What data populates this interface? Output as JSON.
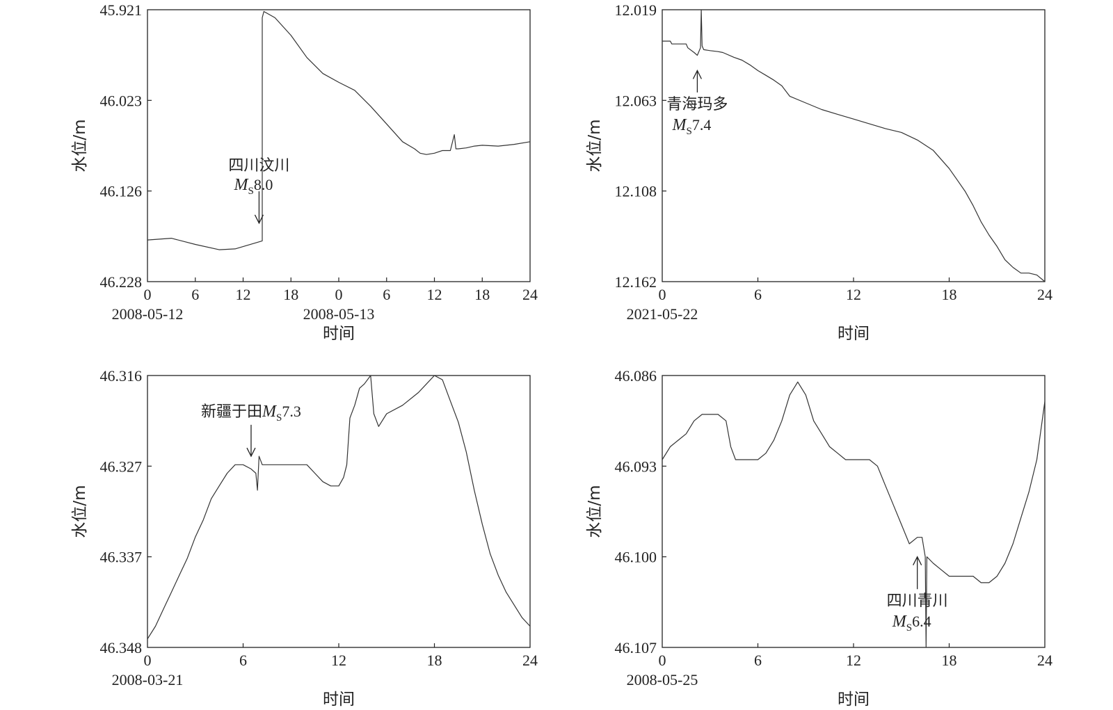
{
  "chart_data": [
    {
      "type": "line",
      "panel": "top-left",
      "ylabel": "水位/m",
      "xlabel": "时间",
      "y_inverted": true,
      "ylim": [
        45.921,
        46.228
      ],
      "yticks": [
        "45.921",
        "46.023",
        "46.126",
        "46.228"
      ],
      "xlim": [
        0,
        48
      ],
      "xticks": [
        {
          "v": 0,
          "label": "0"
        },
        {
          "v": 6,
          "label": "6"
        },
        {
          "v": 12,
          "label": "12"
        },
        {
          "v": 18,
          "label": "18"
        },
        {
          "v": 24,
          "label": "0"
        },
        {
          "v": 30,
          "label": "6"
        },
        {
          "v": 36,
          "label": "12"
        },
        {
          "v": 42,
          "label": "18"
        },
        {
          "v": 48,
          "label": "24"
        }
      ],
      "dates": [
        {
          "v": 0,
          "label": "2008-05-12"
        },
        {
          "v": 24,
          "label": "2008-05-13"
        }
      ],
      "series": [
        {
          "x": [
            0,
            3,
            6,
            9,
            11,
            14.4,
            14.4,
            14.6,
            16,
            18,
            20,
            22,
            24,
            26,
            28,
            30,
            32,
            33.5,
            34.2,
            35,
            36,
            37,
            38,
            38.5,
            38.7,
            39,
            40,
            41,
            42,
            44,
            46,
            48
          ],
          "y": [
            46.181,
            46.179,
            46.186,
            46.192,
            46.191,
            46.182,
            45.93,
            45.923,
            45.93,
            45.95,
            45.975,
            45.993,
            46.003,
            46.012,
            46.03,
            46.05,
            46.07,
            46.078,
            46.083,
            46.0845,
            46.083,
            46.08,
            46.08,
            46.062,
            46.078,
            46.078,
            46.077,
            46.075,
            46.074,
            46.075,
            46.073,
            46.07
          ]
        }
      ],
      "annotations": [
        {
          "line1": "四川汶川",
          "M": "M",
          "sub": "S",
          "mag": "8.0",
          "x": 14,
          "arrow": "down",
          "y_tip": 46.162,
          "y_tail": 46.126
        }
      ]
    },
    {
      "type": "line",
      "panel": "top-right",
      "ylabel": "水位/m",
      "xlabel": "时间",
      "y_inverted": true,
      "ylim": [
        12.019,
        12.162
      ],
      "yticks": [
        "12.019",
        "12.063",
        "12.108",
        "12.162"
      ],
      "xlim": [
        0,
        24
      ],
      "xticks": [
        {
          "v": 0,
          "label": "0"
        },
        {
          "v": 6,
          "label": "6"
        },
        {
          "v": 12,
          "label": "12"
        },
        {
          "v": 18,
          "label": "18"
        },
        {
          "v": 24,
          "label": "24"
        }
      ],
      "dates": [
        {
          "v": 0,
          "label": "2021-05-22"
        }
      ],
      "series": [
        {
          "x": [
            0,
            0.5,
            0.6,
            1.5,
            1.6,
            2.0,
            2.2,
            2.4,
            2.45,
            2.5,
            2.6,
            3.0,
            3.5,
            3.8,
            4.5,
            5.0,
            5.5,
            6.0,
            6.5,
            7.0,
            7.5,
            8.0,
            9.0,
            10.0,
            11.0,
            12.0,
            13.0,
            14.0,
            15.0,
            16.0,
            17.0,
            18.0,
            18.5,
            19.0,
            19.5,
            20.0,
            20.5,
            21.0,
            21.5,
            22.0,
            22.5,
            23.0,
            23.5,
            24.0
          ],
          "y": [
            12.0355,
            12.0355,
            12.037,
            12.037,
            12.039,
            12.0415,
            12.043,
            12.039,
            12.019,
            12.038,
            12.04,
            12.0405,
            12.041,
            12.0415,
            12.044,
            12.0455,
            12.048,
            12.051,
            12.0535,
            12.056,
            12.059,
            12.0645,
            12.068,
            12.0715,
            12.074,
            12.0765,
            12.079,
            12.0815,
            12.0835,
            12.0875,
            12.093,
            12.1025,
            12.1085,
            12.1145,
            12.122,
            12.1305,
            12.1375,
            12.1435,
            12.1505,
            12.1545,
            12.1575,
            12.1575,
            12.1585,
            12.162
          ]
        }
      ],
      "annotations": [
        {
          "line1": "青海玛多",
          "M": "M",
          "sub": "S",
          "mag": "7.4",
          "x": 2.2,
          "arrow": "up",
          "y_tip": 12.051,
          "y_tail": 12.0625
        }
      ]
    },
    {
      "type": "line",
      "panel": "bottom-left",
      "ylabel": "水位/m",
      "xlabel": "时间",
      "y_inverted": true,
      "ylim": [
        46.316,
        46.348
      ],
      "yticks": [
        "46.316",
        "46.327",
        "46.337",
        "46.348"
      ],
      "xlim": [
        0,
        24
      ],
      "xticks": [
        {
          "v": 0,
          "label": "0"
        },
        {
          "v": 6,
          "label": "6"
        },
        {
          "v": 12,
          "label": "12"
        },
        {
          "v": 18,
          "label": "18"
        },
        {
          "v": 24,
          "label": "24"
        }
      ],
      "dates": [
        {
          "v": 0,
          "label": "2008-03-21"
        }
      ],
      "series": [
        {
          "x": [
            0,
            0.5,
            1.0,
            1.5,
            2.0,
            2.5,
            3.0,
            3.5,
            4.0,
            4.5,
            5.0,
            5.5,
            6.0,
            6.5,
            6.8,
            6.9,
            7.0,
            7.2,
            8.0,
            9.0,
            10.0,
            10.5,
            11.0,
            11.5,
            12.0,
            12.3,
            12.5,
            12.7,
            13.0,
            13.3,
            13.6,
            14.0,
            14.2,
            14.5,
            15.0,
            16.0,
            17.0,
            17.5,
            18.0,
            18.5,
            19.0,
            19.5,
            20.0,
            20.5,
            21.0,
            21.5,
            22.0,
            22.5,
            23.0,
            23.5,
            24.0
          ],
          "y": [
            46.347,
            46.3455,
            46.3435,
            46.3415,
            46.3395,
            46.3375,
            46.335,
            46.333,
            46.3305,
            46.329,
            46.3275,
            46.3265,
            46.3265,
            46.327,
            46.3275,
            46.3295,
            46.3255,
            46.3265,
            46.3265,
            46.3265,
            46.3265,
            46.3275,
            46.3285,
            46.329,
            46.329,
            46.328,
            46.3265,
            46.321,
            46.3195,
            46.3175,
            46.317,
            46.316,
            46.3205,
            46.322,
            46.3205,
            46.3195,
            46.318,
            46.317,
            46.316,
            46.3165,
            46.319,
            46.3215,
            46.325,
            46.3295,
            46.3335,
            46.337,
            46.3395,
            46.3415,
            46.343,
            46.3445,
            46.3455
          ]
        }
      ],
      "annotations": [
        {
          "line1": "新疆于田",
          "M": "M",
          "sub": "S",
          "mag": "7.3",
          "x": 6.5,
          "arrow": "down",
          "layout": "inline",
          "y_tip": 46.3255,
          "y_tail": 46.3218
        }
      ]
    },
    {
      "type": "line",
      "panel": "bottom-right",
      "ylabel": "水位/m",
      "xlabel": "时间",
      "y_inverted": true,
      "ylim": [
        46.086,
        46.107
      ],
      "yticks": [
        "46.086",
        "46.093",
        "46.100",
        "46.107"
      ],
      "xlim": [
        0,
        24
      ],
      "xticks": [
        {
          "v": 0,
          "label": "0"
        },
        {
          "v": 6,
          "label": "6"
        },
        {
          "v": 12,
          "label": "12"
        },
        {
          "v": 18,
          "label": "18"
        },
        {
          "v": 24,
          "label": "24"
        }
      ],
      "dates": [
        {
          "v": 0,
          "label": "2008-05-25"
        }
      ],
      "series": [
        {
          "x": [
            0,
            0.5,
            1.0,
            1.5,
            2.0,
            2.5,
            3.0,
            3.5,
            4.0,
            4.3,
            4.6,
            5.0,
            5.5,
            6.0,
            6.5,
            7.0,
            7.5,
            8.0,
            8.5,
            9.0,
            9.5,
            10.0,
            10.5,
            11.0,
            11.5,
            12.0,
            12.5,
            13.0,
            13.5,
            14.0,
            14.5,
            15.0,
            15.5,
            16.0,
            16.3,
            16.5,
            16.55,
            16.6,
            17.0,
            17.5,
            18.0,
            18.5,
            19.0,
            19.5,
            20.0,
            20.5,
            21.0,
            21.5,
            22.0,
            22.5,
            23.0,
            23.5,
            24.0
          ],
          "y": [
            46.0925,
            46.0915,
            46.091,
            46.0905,
            46.0895,
            46.089,
            46.089,
            46.089,
            46.0895,
            46.0915,
            46.0925,
            46.0925,
            46.0925,
            46.0925,
            46.092,
            46.091,
            46.0895,
            46.0875,
            46.0865,
            46.0875,
            46.0895,
            46.0905,
            46.0915,
            46.092,
            46.0925,
            46.0925,
            46.0925,
            46.0925,
            46.093,
            46.0945,
            46.096,
            46.0975,
            46.099,
            46.0985,
            46.0985,
            46.1,
            46.107,
            46.1,
            46.1005,
            46.101,
            46.1015,
            46.1015,
            46.1015,
            46.1015,
            46.102,
            46.102,
            46.1015,
            46.1005,
            46.099,
            46.097,
            46.095,
            46.0925,
            46.088
          ]
        }
      ],
      "annotations": [
        {
          "line1": "四川青川",
          "M": "M",
          "sub": "S",
          "mag": "6.4",
          "x": 16.0,
          "arrow": "up",
          "y_tip": 46.1,
          "y_tail": 46.1025
        }
      ]
    }
  ]
}
